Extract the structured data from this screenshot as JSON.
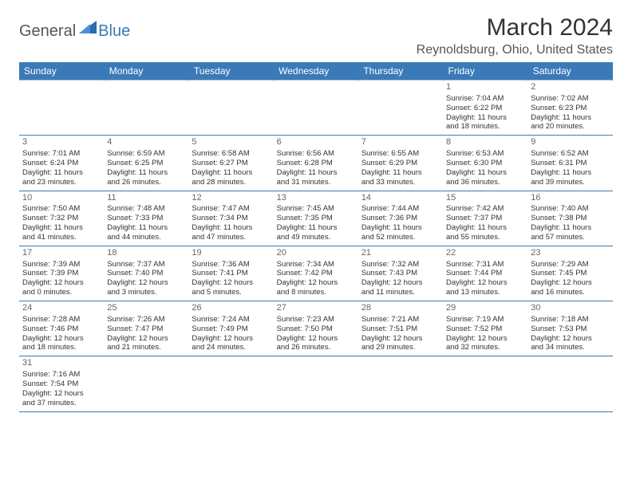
{
  "logo": {
    "general": "General",
    "blue": "Blue"
  },
  "title": "March 2024",
  "location": "Reynoldsburg, Ohio, United States",
  "colors": {
    "brand": "#3a7ab8",
    "text": "#333333",
    "gridline": "#bbbbbb"
  },
  "daynames": [
    "Sunday",
    "Monday",
    "Tuesday",
    "Wednesday",
    "Thursday",
    "Friday",
    "Saturday"
  ],
  "weeks": [
    [
      null,
      null,
      null,
      null,
      null,
      {
        "n": "1",
        "sr": "Sunrise: 7:04 AM",
        "ss": "Sunset: 6:22 PM",
        "d1": "Daylight: 11 hours",
        "d2": "and 18 minutes."
      },
      {
        "n": "2",
        "sr": "Sunrise: 7:02 AM",
        "ss": "Sunset: 6:23 PM",
        "d1": "Daylight: 11 hours",
        "d2": "and 20 minutes."
      }
    ],
    [
      {
        "n": "3",
        "sr": "Sunrise: 7:01 AM",
        "ss": "Sunset: 6:24 PM",
        "d1": "Daylight: 11 hours",
        "d2": "and 23 minutes."
      },
      {
        "n": "4",
        "sr": "Sunrise: 6:59 AM",
        "ss": "Sunset: 6:25 PM",
        "d1": "Daylight: 11 hours",
        "d2": "and 26 minutes."
      },
      {
        "n": "5",
        "sr": "Sunrise: 6:58 AM",
        "ss": "Sunset: 6:27 PM",
        "d1": "Daylight: 11 hours",
        "d2": "and 28 minutes."
      },
      {
        "n": "6",
        "sr": "Sunrise: 6:56 AM",
        "ss": "Sunset: 6:28 PM",
        "d1": "Daylight: 11 hours",
        "d2": "and 31 minutes."
      },
      {
        "n": "7",
        "sr": "Sunrise: 6:55 AM",
        "ss": "Sunset: 6:29 PM",
        "d1": "Daylight: 11 hours",
        "d2": "and 33 minutes."
      },
      {
        "n": "8",
        "sr": "Sunrise: 6:53 AM",
        "ss": "Sunset: 6:30 PM",
        "d1": "Daylight: 11 hours",
        "d2": "and 36 minutes."
      },
      {
        "n": "9",
        "sr": "Sunrise: 6:52 AM",
        "ss": "Sunset: 6:31 PM",
        "d1": "Daylight: 11 hours",
        "d2": "and 39 minutes."
      }
    ],
    [
      {
        "n": "10",
        "sr": "Sunrise: 7:50 AM",
        "ss": "Sunset: 7:32 PM",
        "d1": "Daylight: 11 hours",
        "d2": "and 41 minutes."
      },
      {
        "n": "11",
        "sr": "Sunrise: 7:48 AM",
        "ss": "Sunset: 7:33 PM",
        "d1": "Daylight: 11 hours",
        "d2": "and 44 minutes."
      },
      {
        "n": "12",
        "sr": "Sunrise: 7:47 AM",
        "ss": "Sunset: 7:34 PM",
        "d1": "Daylight: 11 hours",
        "d2": "and 47 minutes."
      },
      {
        "n": "13",
        "sr": "Sunrise: 7:45 AM",
        "ss": "Sunset: 7:35 PM",
        "d1": "Daylight: 11 hours",
        "d2": "and 49 minutes."
      },
      {
        "n": "14",
        "sr": "Sunrise: 7:44 AM",
        "ss": "Sunset: 7:36 PM",
        "d1": "Daylight: 11 hours",
        "d2": "and 52 minutes."
      },
      {
        "n": "15",
        "sr": "Sunrise: 7:42 AM",
        "ss": "Sunset: 7:37 PM",
        "d1": "Daylight: 11 hours",
        "d2": "and 55 minutes."
      },
      {
        "n": "16",
        "sr": "Sunrise: 7:40 AM",
        "ss": "Sunset: 7:38 PM",
        "d1": "Daylight: 11 hours",
        "d2": "and 57 minutes."
      }
    ],
    [
      {
        "n": "17",
        "sr": "Sunrise: 7:39 AM",
        "ss": "Sunset: 7:39 PM",
        "d1": "Daylight: 12 hours",
        "d2": "and 0 minutes."
      },
      {
        "n": "18",
        "sr": "Sunrise: 7:37 AM",
        "ss": "Sunset: 7:40 PM",
        "d1": "Daylight: 12 hours",
        "d2": "and 3 minutes."
      },
      {
        "n": "19",
        "sr": "Sunrise: 7:36 AM",
        "ss": "Sunset: 7:41 PM",
        "d1": "Daylight: 12 hours",
        "d2": "and 5 minutes."
      },
      {
        "n": "20",
        "sr": "Sunrise: 7:34 AM",
        "ss": "Sunset: 7:42 PM",
        "d1": "Daylight: 12 hours",
        "d2": "and 8 minutes."
      },
      {
        "n": "21",
        "sr": "Sunrise: 7:32 AM",
        "ss": "Sunset: 7:43 PM",
        "d1": "Daylight: 12 hours",
        "d2": "and 11 minutes."
      },
      {
        "n": "22",
        "sr": "Sunrise: 7:31 AM",
        "ss": "Sunset: 7:44 PM",
        "d1": "Daylight: 12 hours",
        "d2": "and 13 minutes."
      },
      {
        "n": "23",
        "sr": "Sunrise: 7:29 AM",
        "ss": "Sunset: 7:45 PM",
        "d1": "Daylight: 12 hours",
        "d2": "and 16 minutes."
      }
    ],
    [
      {
        "n": "24",
        "sr": "Sunrise: 7:28 AM",
        "ss": "Sunset: 7:46 PM",
        "d1": "Daylight: 12 hours",
        "d2": "and 18 minutes."
      },
      {
        "n": "25",
        "sr": "Sunrise: 7:26 AM",
        "ss": "Sunset: 7:47 PM",
        "d1": "Daylight: 12 hours",
        "d2": "and 21 minutes."
      },
      {
        "n": "26",
        "sr": "Sunrise: 7:24 AM",
        "ss": "Sunset: 7:49 PM",
        "d1": "Daylight: 12 hours",
        "d2": "and 24 minutes."
      },
      {
        "n": "27",
        "sr": "Sunrise: 7:23 AM",
        "ss": "Sunset: 7:50 PM",
        "d1": "Daylight: 12 hours",
        "d2": "and 26 minutes."
      },
      {
        "n": "28",
        "sr": "Sunrise: 7:21 AM",
        "ss": "Sunset: 7:51 PM",
        "d1": "Daylight: 12 hours",
        "d2": "and 29 minutes."
      },
      {
        "n": "29",
        "sr": "Sunrise: 7:19 AM",
        "ss": "Sunset: 7:52 PM",
        "d1": "Daylight: 12 hours",
        "d2": "and 32 minutes."
      },
      {
        "n": "30",
        "sr": "Sunrise: 7:18 AM",
        "ss": "Sunset: 7:53 PM",
        "d1": "Daylight: 12 hours",
        "d2": "and 34 minutes."
      }
    ],
    [
      {
        "n": "31",
        "sr": "Sunrise: 7:16 AM",
        "ss": "Sunset: 7:54 PM",
        "d1": "Daylight: 12 hours",
        "d2": "and 37 minutes."
      },
      null,
      null,
      null,
      null,
      null,
      null
    ]
  ]
}
